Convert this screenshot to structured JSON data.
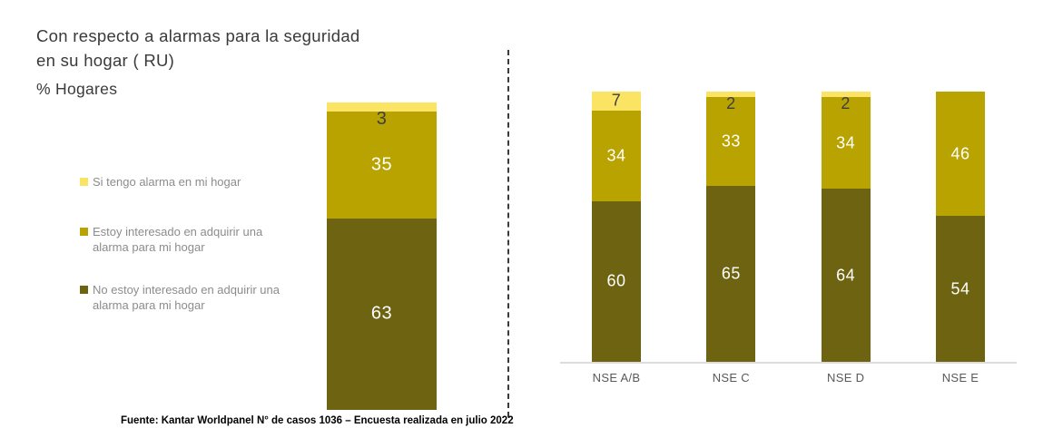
{
  "header": {
    "title_line1": "Con respecto a alarmas para la seguridad",
    "title_line2": "en su hogar ( RU)",
    "subtitle": "% Hogares"
  },
  "legend": {
    "items": [
      {
        "label": "Si tengo alarma en mi hogar"
      },
      {
        "label": "Estoy interesado en adquirir una alarma para mi hogar"
      },
      {
        "label": "No estoy interesado en adquirir una alarma para mi hogar"
      }
    ]
  },
  "colors": {
    "series": [
      "#FBE463",
      "#B9A301",
      "#6E6310"
    ],
    "series_label_text": [
      "#3f3f3f",
      "#ffffff",
      "#ffffff"
    ],
    "axis_line": "#dcdcdc",
    "divider": "#3a3a3a",
    "category_label": "#595959",
    "legend_text": "#8c8c8c"
  },
  "chart_data": [
    {
      "type": "bar",
      "stacked": true,
      "orientation": "vertical",
      "value_unit": "% Hogares",
      "data_labels": true,
      "categories": [
        ""
      ],
      "series": [
        {
          "name": "Si tengo alarma en mi hogar",
          "values": [
            3
          ]
        },
        {
          "name": "Estoy interesado en adquirir una alarma para mi hogar",
          "values": [
            35
          ]
        },
        {
          "name": "No estoy interesado en adquirir una alarma para mi hogar",
          "values": [
            63
          ]
        }
      ]
    },
    {
      "type": "bar",
      "stacked": true,
      "orientation": "vertical",
      "value_unit": "% Hogares",
      "data_labels": true,
      "categories": [
        "NSE A/B",
        "NSE C",
        "NSE D",
        "NSE E"
      ],
      "series": [
        {
          "name": "Si tengo alarma en mi hogar",
          "values": [
            7,
            2,
            2,
            0
          ]
        },
        {
          "name": "Estoy interesado en adquirir una alarma para mi hogar",
          "values": [
            34,
            33,
            34,
            46
          ]
        },
        {
          "name": "No estoy interesado en adquirir una alarma para mi hogar",
          "values": [
            60,
            65,
            64,
            54
          ]
        }
      ]
    }
  ],
  "footer": {
    "source": "Fuente: Kantar Worldpanel N° de casos 1036 – Encuesta realizada en julio 2022"
  }
}
